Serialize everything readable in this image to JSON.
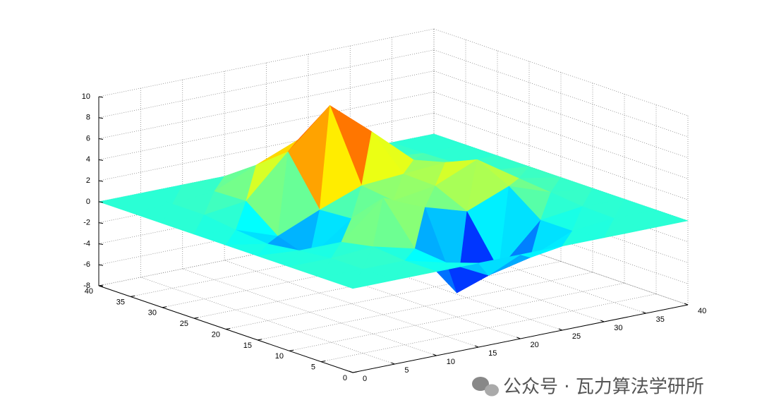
{
  "chart_data": {
    "type": "surface3d",
    "x": [
      0,
      5,
      10,
      15,
      20,
      25,
      30,
      35,
      40
    ],
    "y": [
      0,
      5,
      10,
      15,
      20,
      25,
      30,
      35,
      40
    ],
    "z": [
      [
        0,
        0,
        0,
        0,
        0,
        0,
        0,
        0,
        0
      ],
      [
        0,
        0,
        0,
        -1.0,
        -3.0,
        -2.1,
        -0.4,
        0,
        0
      ],
      [
        0,
        0,
        0.3,
        -0.7,
        -5.7,
        -4.3,
        -0.4,
        0.1,
        0
      ],
      [
        0,
        -0.3,
        -0.3,
        3.1,
        1.4,
        0.2,
        1.8,
        0.4,
        0
      ],
      [
        0,
        -0.7,
        -2.8,
        0.1,
        1.0,
        1.6,
        3.3,
        0.7,
        0
      ],
      [
        0,
        -0.4,
        -1.8,
        -0.1,
        1.4,
        1.7,
        2.0,
        0.4,
        0
      ],
      [
        0,
        0,
        0.5,
        4.4,
        8.0,
        4.7,
        1.2,
        0.1,
        0
      ],
      [
        0,
        0,
        0.4,
        2.1,
        3.7,
        2.1,
        0.4,
        0,
        0
      ],
      [
        0,
        0,
        0,
        0,
        0,
        0,
        0,
        0,
        0
      ]
    ],
    "xlim": [
      0,
      40
    ],
    "xticks": [
      0,
      5,
      10,
      15,
      20,
      25,
      30,
      35,
      40
    ],
    "ylim": [
      0,
      40
    ],
    "yticks": [
      0,
      5,
      10,
      15,
      20,
      25,
      30,
      35,
      40
    ],
    "zlim": [
      -8,
      10
    ],
    "zticks": [
      -8,
      -6,
      -4,
      -2,
      0,
      2,
      4,
      6,
      8,
      10
    ],
    "colormap": "jet",
    "grid": true
  },
  "watermark": "公众号 · 瓦力算法学研所"
}
